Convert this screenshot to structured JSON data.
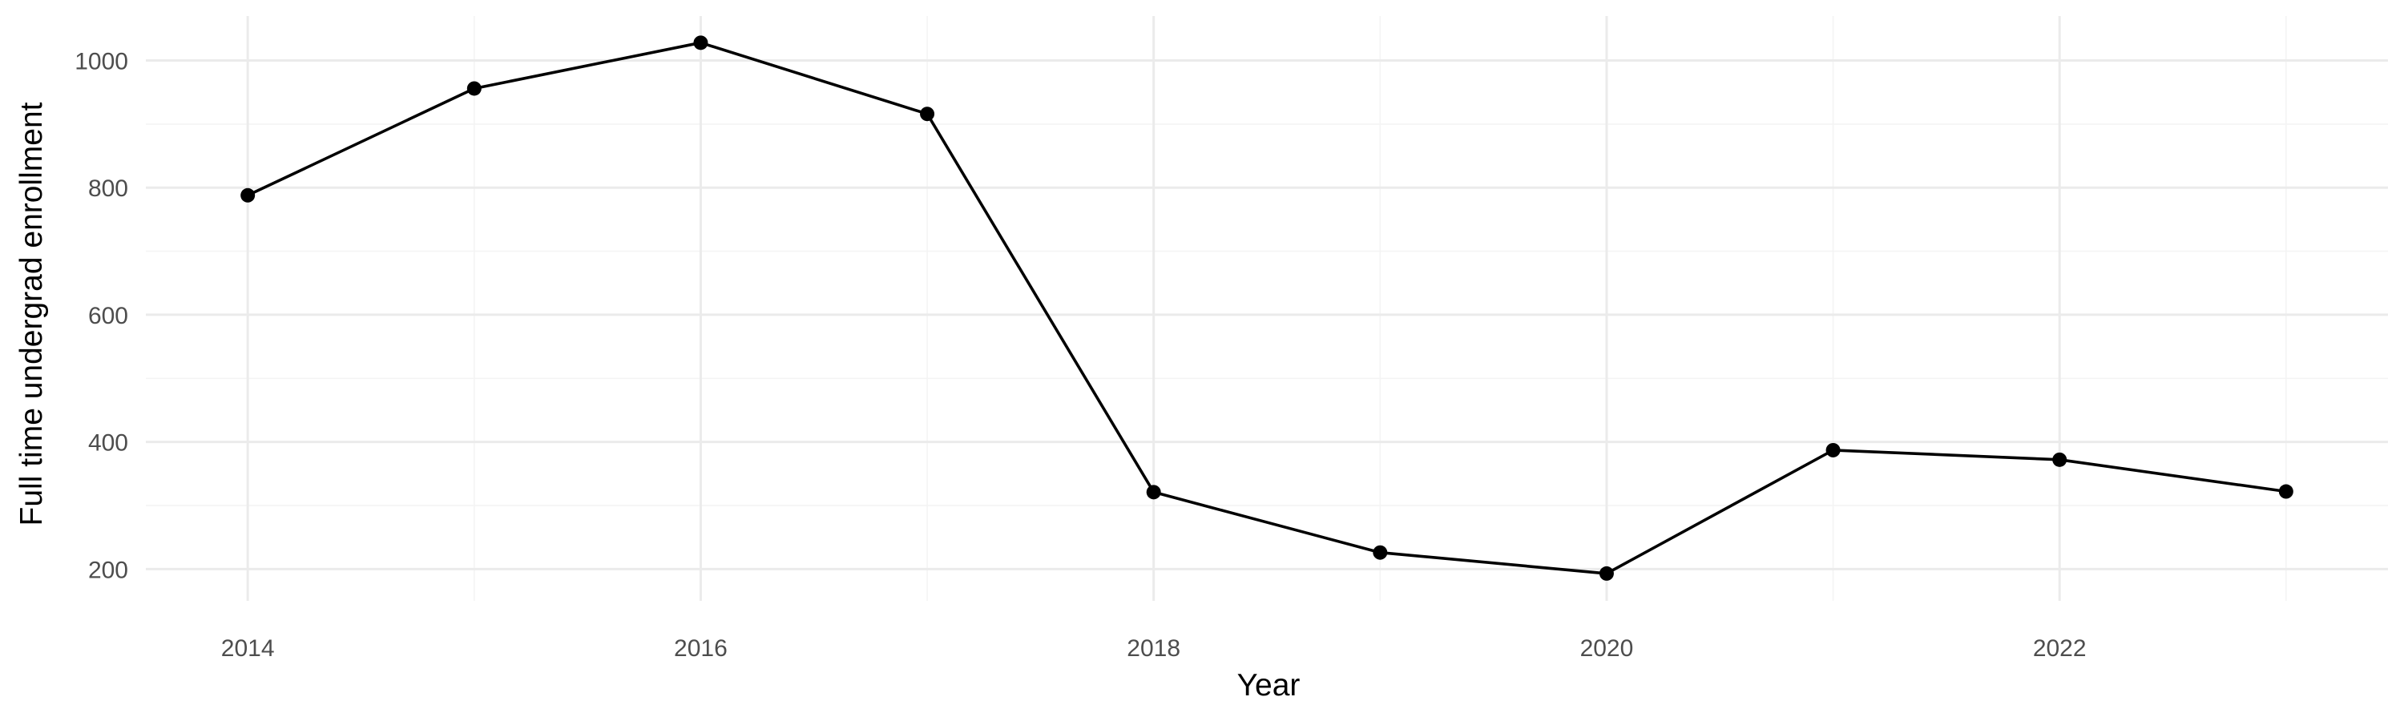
{
  "chart_data": {
    "type": "line",
    "title": "",
    "xlabel": "Year",
    "ylabel": "Full time undergrad enrollment",
    "x": [
      2014,
      2015,
      2016,
      2017,
      2018,
      2019,
      2020,
      2021,
      2022,
      2023
    ],
    "series": [
      {
        "values": [
          788,
          956,
          1028,
          916,
          321,
          226,
          193,
          387,
          372,
          322
        ],
        "color": "#000000",
        "markers": true
      }
    ],
    "xlim": [
      2013.55,
      2023.45
    ],
    "ylim": [
      150,
      1070
    ],
    "x_ticks": [
      2014,
      2016,
      2018,
      2020,
      2022
    ],
    "x_tick_labels": [
      "2014",
      "2016",
      "2018",
      "2020",
      "2022"
    ],
    "y_ticks": [
      200,
      400,
      600,
      800,
      1000
    ],
    "y_tick_labels": [
      "200",
      "400",
      "600",
      "800",
      "1000"
    ],
    "x_minor_ticks": [
      2015,
      2017,
      2019,
      2021,
      2023
    ],
    "y_minor_ticks": [
      300,
      500,
      700,
      900
    ],
    "grid": true,
    "legend": "none",
    "colors": {
      "background": "#ffffff",
      "grid_major": "#ebebeb",
      "grid_minor": "#f4f4f4",
      "line": "#000000",
      "tick_text": "#4d4d4d",
      "axis_title": "#000000"
    }
  }
}
